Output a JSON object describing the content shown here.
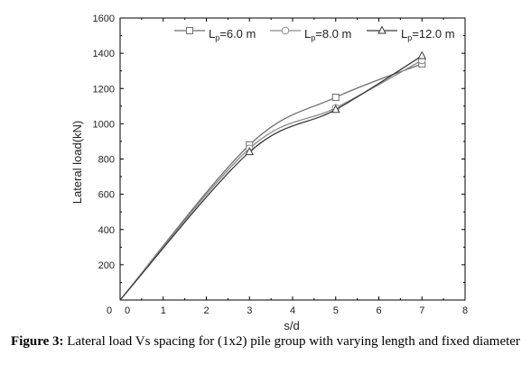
{
  "chart_data": {
    "type": "line",
    "xlabel": "s/d",
    "ylabel": "Lateral load(kN)",
    "xlim": [
      0,
      8
    ],
    "ylim": [
      0,
      1600
    ],
    "x_tick_labels": [
      "0",
      "1",
      "2",
      "3",
      "4",
      "5",
      "6",
      "7",
      "8"
    ],
    "y_tick_labels": [
      "200",
      "400",
      "600",
      "800",
      "1000",
      "1200",
      "1400",
      "1600"
    ],
    "origin_labels": [
      "0",
      "0"
    ],
    "legend_position": "top-right",
    "series": [
      {
        "name": "Lp=6.0 m",
        "name_main": "L",
        "name_sub": "p",
        "name_rest": "=6.0 m",
        "marker": "square",
        "color": "#6e6e6e",
        "x": [
          0,
          3,
          5,
          7
        ],
        "y": [
          0,
          880,
          1150,
          1340
        ]
      },
      {
        "name": "Lp=8.0 m",
        "name_main": "L",
        "name_sub": "p",
        "name_rest": "=8.0 m",
        "marker": "circle",
        "color": "#8a8a8a",
        "x": [
          0,
          3,
          5,
          7
        ],
        "y": [
          0,
          860,
          1090,
          1360
        ]
      },
      {
        "name": "Lp=12.0 m",
        "name_main": "L",
        "name_sub": "p",
        "name_rest": "=12.0 m",
        "marker": "triangle",
        "color": "#3a3a3a",
        "x": [
          0,
          3,
          5,
          7
        ],
        "y": [
          0,
          840,
          1080,
          1385
        ]
      }
    ]
  },
  "caption": {
    "label": "Figure 3:",
    "text": " Lateral load Vs spacing for (1x2) pile group with varying length and fixed diameter"
  }
}
